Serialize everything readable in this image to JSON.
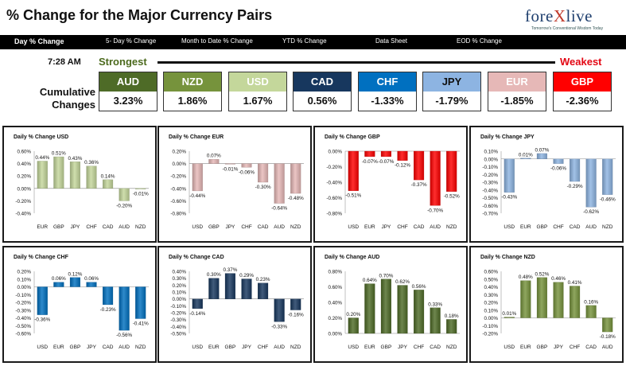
{
  "header": {
    "title": "% Change for the Major Currency Pairs",
    "logo_left": "fore",
    "logo_x": "X",
    "logo_right": "live",
    "logo_tagline": "Tomorrow's Conventional Wisdom Today"
  },
  "nav": {
    "items": [
      {
        "label": "Day % Change",
        "active": true
      },
      {
        "label": "5- Day % Change",
        "active": false
      },
      {
        "label": "Month to Date % Change",
        "active": false
      },
      {
        "label": "YTD % Change",
        "active": false
      },
      {
        "label": "Data Sheet",
        "active": false
      },
      {
        "label": "EOD % Change",
        "active": false
      }
    ]
  },
  "summary": {
    "time": "7:28 AM",
    "strongest_label": "Strongest",
    "weakest_label": "Weakest",
    "cumulative_label": "Cumulative Changes",
    "boxes": [
      {
        "code": "AUD",
        "value": "3.23%",
        "bg": "#4e6b27",
        "fg": "#ffffff"
      },
      {
        "code": "NZD",
        "value": "1.86%",
        "bg": "#76933c",
        "fg": "#ffffff"
      },
      {
        "code": "USD",
        "value": "1.67%",
        "bg": "#c4d79b",
        "fg": "#ffffff"
      },
      {
        "code": "CAD",
        "value": "0.56%",
        "bg": "#17375e",
        "fg": "#ffffff"
      },
      {
        "code": "CHF",
        "value": "-1.33%",
        "bg": "#0070c0",
        "fg": "#ffffff"
      },
      {
        "code": "JPY",
        "value": "-1.79%",
        "bg": "#8db4e2",
        "fg": "#111111"
      },
      {
        "code": "EUR",
        "value": "-1.85%",
        "bg": "#e6b8b7",
        "fg": "#ffffff"
      },
      {
        "code": "GBP",
        "value": "-2.36%",
        "bg": "#ff0000",
        "fg": "#ffffff"
      }
    ]
  },
  "chart_data": [
    {
      "type": "bar",
      "title": "Daily % Change USD",
      "categories": [
        "EUR",
        "GBP",
        "JPY",
        "CHF",
        "CAD",
        "AUD",
        "NZD"
      ],
      "values": [
        0.44,
        0.51,
        0.43,
        0.36,
        0.14,
        -0.2,
        -0.01
      ],
      "labels": [
        "0.44%",
        "0.51%",
        "0.43%",
        "0.36%",
        "0.14%",
        "-0.20%",
        "-0.01%"
      ],
      "ylim": [
        -0.4,
        0.6
      ],
      "yticks": [
        "0.60%",
        "0.40%",
        "0.20%",
        "0.00%",
        "-0.20%",
        "-0.40%"
      ],
      "color": "#c4d79b"
    },
    {
      "type": "bar",
      "title": "Daily % Change EUR",
      "categories": [
        "USD",
        "GBP",
        "JPY",
        "CHF",
        "CAD",
        "AUD",
        "NZD"
      ],
      "values": [
        -0.44,
        0.07,
        -0.01,
        -0.06,
        -0.3,
        -0.64,
        -0.48
      ],
      "labels": [
        "-0.44%",
        "0.07%",
        "-0.01%",
        "-0.06%",
        "-0.30%",
        "-0.64%",
        "-0.48%"
      ],
      "ylim": [
        -0.8,
        0.2
      ],
      "yticks": [
        "0.20%",
        "0.00%",
        "-0.20%",
        "-0.40%",
        "-0.60%",
        "-0.80%"
      ],
      "color": "#e6b8b7"
    },
    {
      "type": "bar",
      "title": "Daily % Change GBP",
      "categories": [
        "USD",
        "EUR",
        "JPY",
        "CHF",
        "CAD",
        "AUD",
        "NZD"
      ],
      "values": [
        -0.51,
        -0.07,
        -0.07,
        -0.12,
        -0.37,
        -0.7,
        -0.52
      ],
      "labels": [
        "-0.51%",
        "-0.07%",
        "-0.07%",
        "-0.12%",
        "-0.37%",
        "-0.70%",
        "-0.52%"
      ],
      "ylim": [
        -0.8,
        0.0
      ],
      "yticks": [
        "0.00%",
        "-0.20%",
        "-0.40%",
        "-0.60%",
        "-0.80%"
      ],
      "color": "#ff0000"
    },
    {
      "type": "bar",
      "title": "Daily % Change JPY",
      "categories": [
        "USD",
        "EUR",
        "GBP",
        "CHF",
        "CAD",
        "AUD",
        "NZD"
      ],
      "values": [
        -0.43,
        0.01,
        0.07,
        -0.06,
        -0.29,
        -0.62,
        -0.46
      ],
      "labels": [
        "-0.43%",
        "0.01%",
        "0.07%",
        "-0.06%",
        "-0.29%",
        "-0.62%",
        "-0.46%"
      ],
      "ylim": [
        -0.7,
        0.1
      ],
      "yticks": [
        "0.10%",
        "0.00%",
        "-0.10%",
        "-0.20%",
        "-0.30%",
        "-0.40%",
        "-0.50%",
        "-0.60%",
        "-0.70%"
      ],
      "color": "#8db4e2"
    },
    {
      "type": "bar",
      "title": "Daily % Change CHF",
      "categories": [
        "USD",
        "EUR",
        "GBP",
        "JPY",
        "CAD",
        "AUD",
        "NZD"
      ],
      "values": [
        -0.36,
        0.06,
        0.12,
        0.06,
        -0.23,
        -0.56,
        -0.41
      ],
      "labels": [
        "-0.36%",
        "0.06%",
        "0.12%",
        "0.06%",
        "-0.23%",
        "-0.56%",
        "-0.41%"
      ],
      "ylim": [
        -0.6,
        0.2
      ],
      "yticks": [
        "0.20%",
        "0.10%",
        "0.00%",
        "-0.10%",
        "-0.20%",
        "-0.30%",
        "-0.40%",
        "-0.50%",
        "-0.60%"
      ],
      "color": "#0070c0"
    },
    {
      "type": "bar",
      "title": "Daily % Change CAD",
      "categories": [
        "USD",
        "EUR",
        "GBP",
        "JPY",
        "CHF",
        "AUD",
        "NZD"
      ],
      "values": [
        -0.14,
        0.3,
        0.37,
        0.29,
        0.23,
        -0.33,
        -0.16
      ],
      "labels": [
        "-0.14%",
        "0.30%",
        "0.37%",
        "0.29%",
        "0.23%",
        "-0.33%",
        "-0.16%"
      ],
      "ylim": [
        -0.5,
        0.4
      ],
      "yticks": [
        "0.40%",
        "0.30%",
        "0.20%",
        "0.10%",
        "0.00%",
        "-0.10%",
        "-0.20%",
        "-0.30%",
        "-0.40%",
        "-0.50%"
      ],
      "color": "#17375e"
    },
    {
      "type": "bar",
      "title": "Daily % Change AUD",
      "categories": [
        "USD",
        "EUR",
        "GBP",
        "JPY",
        "CHF",
        "CAD",
        "NZD"
      ],
      "values": [
        0.2,
        0.64,
        0.7,
        0.62,
        0.56,
        0.33,
        0.18
      ],
      "labels": [
        "0.20%",
        "0.64%",
        "0.70%",
        "0.62%",
        "0.56%",
        "0.33%",
        "0.18%"
      ],
      "ylim": [
        0,
        0.8
      ],
      "yticks": [
        "0.80%",
        "0.60%",
        "0.40%",
        "0.20%",
        "0.00%"
      ],
      "color": "#4e6b27"
    },
    {
      "type": "bar",
      "title": "Daily % Change NZD",
      "categories": [
        "USD",
        "EUR",
        "GBP",
        "JPY",
        "CHF",
        "CAD",
        "AUD"
      ],
      "values": [
        0.01,
        0.48,
        0.52,
        0.46,
        0.41,
        0.16,
        -0.18
      ],
      "labels": [
        "0.01%",
        "0.48%",
        "0.52%",
        "0.46%",
        "0.41%",
        "0.16%",
        "-0.18%"
      ],
      "ylim": [
        -0.2,
        0.6
      ],
      "yticks": [
        "0.60%",
        "0.50%",
        "0.40%",
        "0.30%",
        "0.20%",
        "0.10%",
        "0.00%",
        "-0.10%",
        "-0.20%"
      ],
      "color": "#76933c"
    }
  ]
}
